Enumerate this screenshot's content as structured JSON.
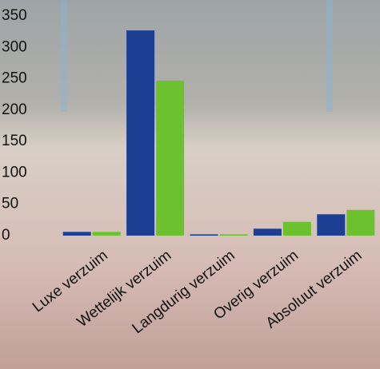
{
  "chart_data": {
    "type": "bar",
    "categories": [
      "Luxe verzuim",
      "Wettelijk verzuim",
      "Langdurig verzuim",
      "Overig verzuim",
      "Absoluut verzuim"
    ],
    "series": [
      {
        "color": "#1c3f94",
        "values": [
          6,
          327,
          2,
          11,
          34
        ]
      },
      {
        "color": "#6cc12f",
        "values": [
          6,
          247,
          2,
          22,
          41
        ]
      }
    ],
    "ylim": [
      0,
      350
    ],
    "yticks": [
      0,
      50,
      100,
      150,
      200,
      250,
      300,
      350
    ],
    "grid": false
  }
}
